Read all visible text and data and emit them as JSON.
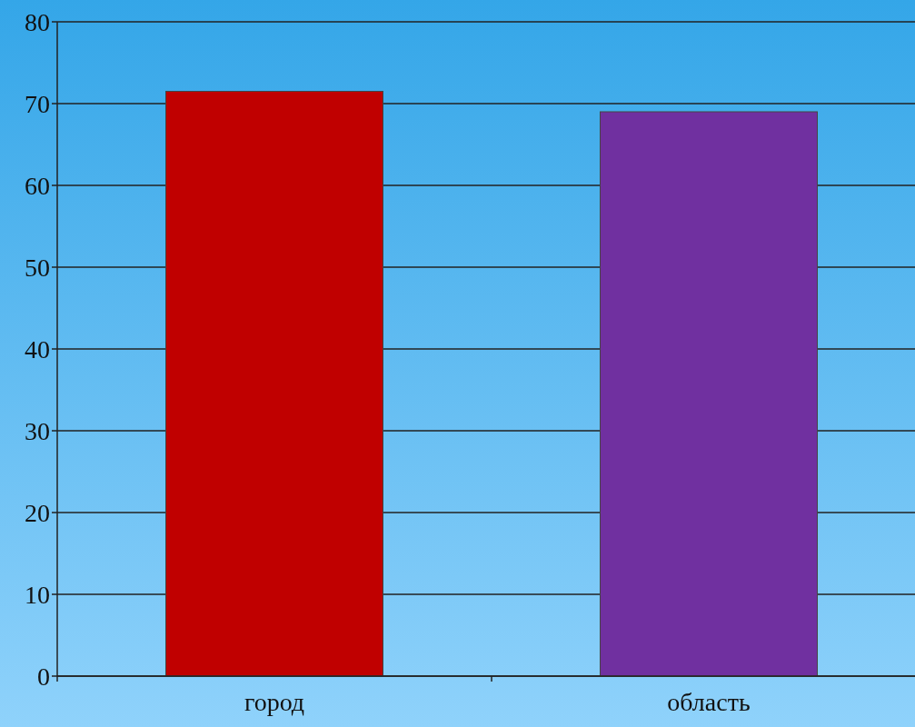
{
  "chart_data": {
    "type": "bar",
    "categories": [
      "город",
      "область"
    ],
    "series": [
      {
        "values": [
          71.5,
          69
        ],
        "colors": [
          "#c00000",
          "#7030a0"
        ]
      }
    ],
    "ylim": [
      0,
      80
    ],
    "yticks": [
      0,
      10,
      20,
      30,
      40,
      50,
      60,
      70,
      80
    ],
    "grid": "y"
  }
}
